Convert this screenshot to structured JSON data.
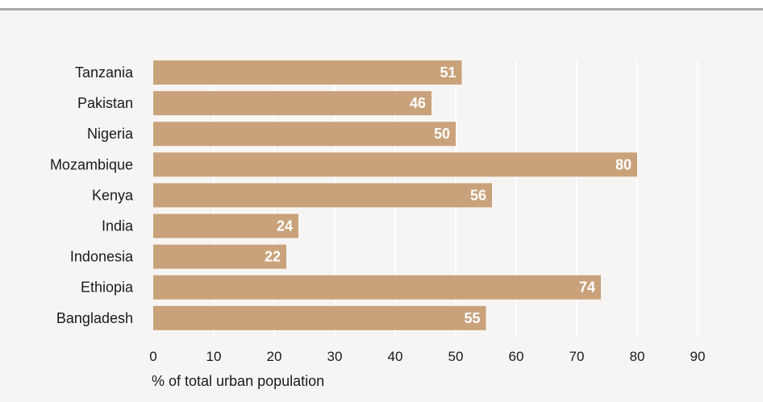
{
  "chart_data": {
    "type": "bar",
    "orientation": "horizontal",
    "categories": [
      "Tanzania",
      "Pakistan",
      "Nigeria",
      "Mozambique",
      "Kenya",
      "India",
      "Indonesia",
      "Ethiopia",
      "Bangladesh"
    ],
    "values": [
      51,
      46,
      50,
      80,
      56,
      24,
      22,
      74,
      55
    ],
    "title": "",
    "xlabel": "% of total urban population",
    "ylabel": "",
    "xlim": [
      0,
      90
    ],
    "xticks": [
      0,
      10,
      20,
      30,
      40,
      50,
      60,
      70,
      80,
      90
    ],
    "grid": "vertical",
    "legend": "none",
    "colors": {
      "bar": "#c9a27b",
      "value_label": "#ffffff",
      "gridline": "#ffffff",
      "background": "#f7f5f3",
      "top_rule": "#a9a9a9"
    }
  }
}
